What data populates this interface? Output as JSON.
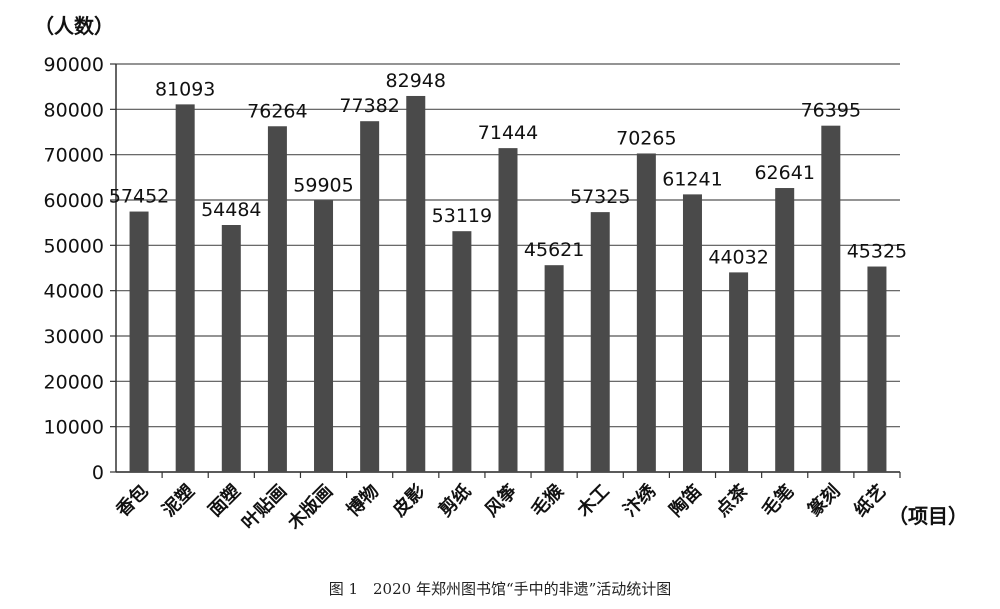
{
  "chart_data": {
    "type": "bar",
    "ylabel": "（人数）",
    "xlabel": "（项目）",
    "caption": "图 1　2020 年郑州图书馆“手中的非遗”活动统计图",
    "ylim": [
      0,
      90000
    ],
    "yticks": [
      0,
      10000,
      20000,
      30000,
      40000,
      50000,
      60000,
      70000,
      80000,
      90000
    ],
    "grid": true,
    "bar_color": "#4a4a4a",
    "categories": [
      "香包",
      "泥塑",
      "面塑",
      "叶贴画",
      "木版画",
      "博物",
      "皮影",
      "剪纸",
      "风筝",
      "毛猴",
      "木工",
      "汴绣",
      "陶笛",
      "点茶",
      "毛笔",
      "篆刻",
      "纸艺"
    ],
    "values": [
      57452,
      81093,
      54484,
      76264,
      59905,
      77382,
      82948,
      53119,
      71444,
      45621,
      57325,
      70265,
      61241,
      44032,
      62641,
      76395,
      45325
    ]
  }
}
